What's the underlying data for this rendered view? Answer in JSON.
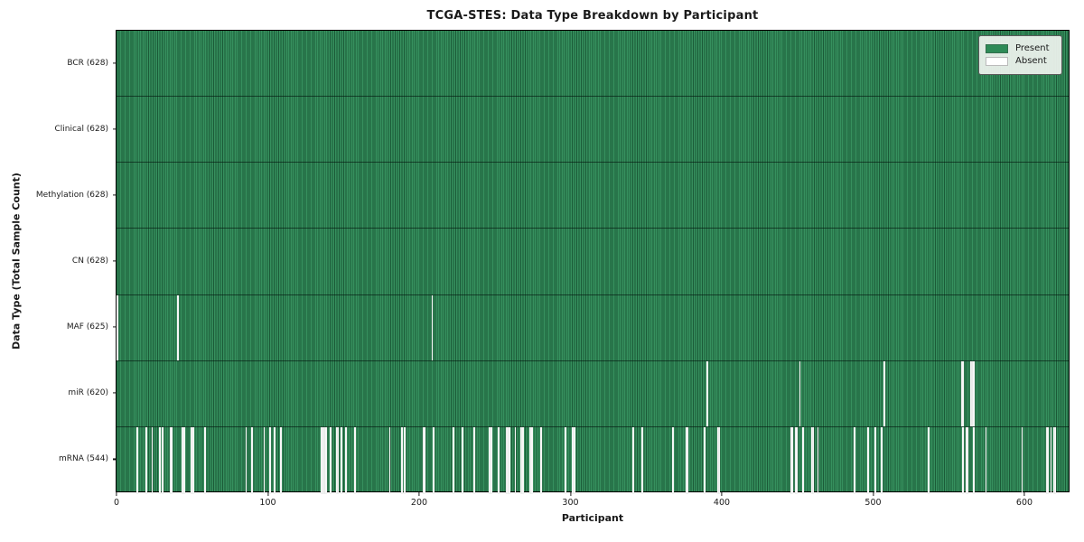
{
  "chart_data": {
    "type": "heatmap",
    "title": "TCGA-STES: Data Type Breakdown by Participant",
    "xlabel": "Participant",
    "ylabel": "Data Type (Total Sample Count)",
    "x_ticks": [
      0,
      100,
      200,
      300,
      400,
      500,
      600
    ],
    "x_range": [
      0,
      628
    ],
    "n_participants": 628,
    "grid": false,
    "legend_position": "upper right",
    "legend": [
      {
        "label": "Present",
        "color": "#2e8b57"
      },
      {
        "label": "Absent",
        "color": "#ffffff"
      }
    ],
    "colors": {
      "present": "#2e8b57",
      "bar_edge": "#14502f",
      "absent": "#f7f7f7"
    },
    "rows": [
      {
        "label": "BCR (628)",
        "data_type": "BCR",
        "present_count": 628,
        "absent_participants": []
      },
      {
        "label": "Clinical (628)",
        "data_type": "Clinical",
        "present_count": 628,
        "absent_participants": []
      },
      {
        "label": "Methylation (628)",
        "data_type": "Methylation",
        "present_count": 628,
        "absent_participants": []
      },
      {
        "label": "CN (628)",
        "data_type": "CN",
        "present_count": 628,
        "absent_participants": []
      },
      {
        "label": "MAF (625)",
        "data_type": "MAF",
        "present_count": 625,
        "absent_participants": [
          0,
          40,
          208
        ]
      },
      {
        "label": "miR (620)",
        "data_type": "miR",
        "present_count": 620,
        "absent_participants": [
          390,
          451,
          507,
          558,
          559,
          564,
          565,
          566
        ]
      },
      {
        "label": "mRNA (544)",
        "data_type": "mRNA",
        "present_count": 544,
        "absent_participants": [
          13,
          19,
          23,
          28,
          30,
          35,
          36,
          43,
          44,
          49,
          50,
          58,
          85,
          89,
          97,
          101,
          104,
          108,
          135,
          136,
          137,
          138,
          141,
          145,
          146,
          148,
          151,
          157,
          180,
          188,
          190,
          202,
          203,
          209,
          222,
          228,
          236,
          246,
          247,
          252,
          257,
          258,
          259,
          263,
          267,
          268,
          273,
          274,
          280,
          296,
          301,
          302,
          341,
          347,
          367,
          376,
          377,
          388,
          397,
          398,
          445,
          446,
          448,
          449,
          453,
          459,
          460,
          463,
          487,
          496,
          501,
          505,
          536,
          559,
          561,
          562,
          566,
          574,
          598,
          614,
          615,
          617,
          619,
          620
        ]
      }
    ]
  }
}
